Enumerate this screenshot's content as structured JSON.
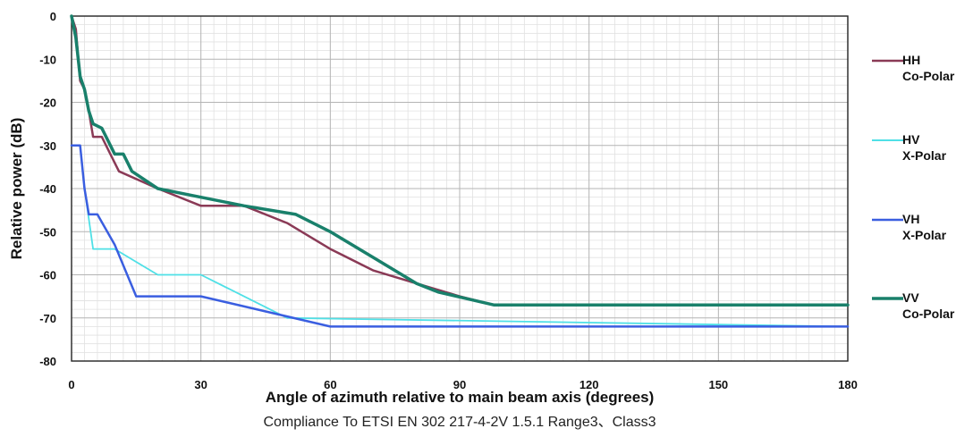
{
  "chart_data": {
    "type": "line",
    "title": "",
    "caption": "Compliance To ETSI EN 302 217-4-2V 1.5.1 Range3、Class3",
    "xlabel": "Angle of azimuth relative to main beam axis (degrees)",
    "ylabel": "Relative power (dB)",
    "xlim": [
      0,
      180
    ],
    "ylim": [
      -80,
      0
    ],
    "xticks": [
      "0",
      "30",
      "60",
      "90",
      "120",
      "150",
      "180"
    ],
    "yticks": [
      "0",
      "-10",
      "-20",
      "-30",
      "-40",
      "-50",
      "-60",
      "-70",
      "-80"
    ],
    "grid": true,
    "legend_position": "right",
    "series": [
      {
        "name_lines": [
          "HH",
          "Co-Polar"
        ],
        "color": "#8a3a56",
        "width": 2.5,
        "points": [
          [
            0,
            0
          ],
          [
            1,
            -3
          ],
          [
            2,
            -15
          ],
          [
            3,
            -17
          ],
          [
            4,
            -22
          ],
          [
            5,
            -28
          ],
          [
            7,
            -28
          ],
          [
            9,
            -32
          ],
          [
            11,
            -36
          ],
          [
            20,
            -40
          ],
          [
            30,
            -44
          ],
          [
            40,
            -44
          ],
          [
            50,
            -48
          ],
          [
            60,
            -54
          ],
          [
            70,
            -59
          ],
          [
            80,
            -62
          ],
          [
            90,
            -65
          ],
          [
            98,
            -67
          ],
          [
            180,
            -67
          ]
        ]
      },
      {
        "name_lines": [
          "HV",
          "X-Polar"
        ],
        "color": "#4fe0e6",
        "width": 1.8,
        "points": [
          [
            0,
            -30
          ],
          [
            2,
            -30
          ],
          [
            3,
            -40
          ],
          [
            5,
            -54
          ],
          [
            10,
            -54
          ],
          [
            20,
            -60
          ],
          [
            30,
            -60
          ],
          [
            50,
            -70
          ],
          [
            180,
            -72
          ]
        ]
      },
      {
        "name_lines": [
          "VH",
          "X-Polar"
        ],
        "color": "#3a5ee0",
        "width": 2.5,
        "points": [
          [
            0,
            -30
          ],
          [
            2,
            -30
          ],
          [
            3,
            -40
          ],
          [
            4,
            -46
          ],
          [
            6,
            -46
          ],
          [
            10,
            -53
          ],
          [
            15,
            -65
          ],
          [
            30,
            -65
          ],
          [
            60,
            -72
          ],
          [
            180,
            -72
          ]
        ]
      },
      {
        "name_lines": [
          "VV",
          "Co-Polar"
        ],
        "color": "#19806b",
        "width": 3.5,
        "points": [
          [
            0,
            0
          ],
          [
            1,
            -5
          ],
          [
            2,
            -14
          ],
          [
            3,
            -17
          ],
          [
            4,
            -22
          ],
          [
            5,
            -25
          ],
          [
            7,
            -26
          ],
          [
            10,
            -32
          ],
          [
            12,
            -32
          ],
          [
            14,
            -36
          ],
          [
            20,
            -40
          ],
          [
            30,
            -42
          ],
          [
            40,
            -44
          ],
          [
            52,
            -46
          ],
          [
            60,
            -50
          ],
          [
            70,
            -56
          ],
          [
            80,
            -62
          ],
          [
            85,
            -64
          ],
          [
            98,
            -67
          ],
          [
            180,
            -67
          ]
        ]
      }
    ]
  }
}
